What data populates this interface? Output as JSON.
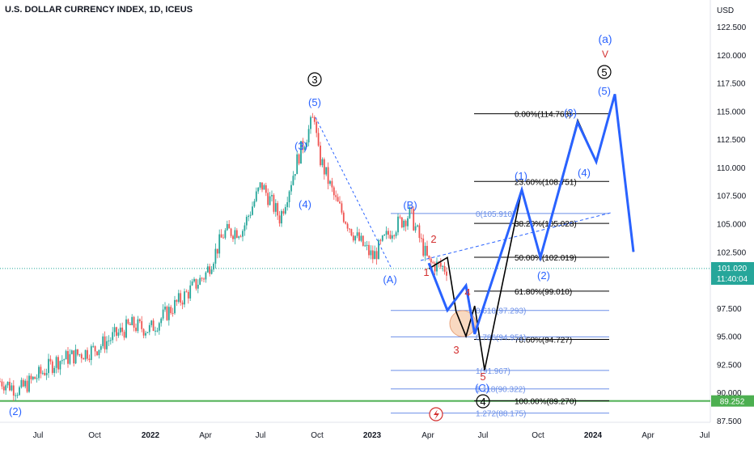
{
  "header": {
    "title": "U.S. DOLLAR CURRENCY INDEX, 1D, ICEUS"
  },
  "axis": {
    "currency": "USD",
    "yticks": [
      "122.500",
      "120.000",
      "117.500",
      "115.000",
      "112.500",
      "110.000",
      "107.500",
      "105.000",
      "102.500",
      "100.000",
      "97.500",
      "95.000",
      "92.500",
      "90.000",
      "87.500"
    ],
    "xticks": [
      "Jul",
      "Oct",
      "2022",
      "Apr",
      "Jul",
      "Oct",
      "2023",
      "Apr",
      "Jul",
      "Oct",
      "2024",
      "Apr",
      "Jul"
    ],
    "price_label": "101.020",
    "countdown_label": "11:40:04",
    "support_label": "89.252"
  },
  "colors": {
    "up": "#26a69a",
    "down": "#ef5350",
    "projection_blue": "#2962ff",
    "projection_black": "#000000",
    "support_green": "#4caf50",
    "label_blue": "#2962ff",
    "label_red": "#d32f2f",
    "fib_blue": "#6b8fe8"
  },
  "fib_black": [
    {
      "label": "0.00%(114.768)",
      "value": 114.768
    },
    {
      "label": "23.60%(108.751)",
      "value": 108.751
    },
    {
      "label": "38.20%(105.028)",
      "value": 105.028
    },
    {
      "label": "50.00%(102.019)",
      "value": 102.019
    },
    {
      "label": "61.80%(99.010)",
      "value": 99.01
    },
    {
      "label": "78.60%(94.727)",
      "value": 94.727
    },
    {
      "label": "100.00%(89.270)",
      "value": 89.27
    }
  ],
  "fib_blue": [
    {
      "label": "0(105.910)",
      "value": 105.91
    },
    {
      "label": "0.618(97.293)",
      "value": 97.293
    },
    {
      "label": "0.786(94.951)",
      "value": 94.951
    },
    {
      "label": "1(91.967)",
      "value": 91.967
    },
    {
      "label": "1.118(90.322)",
      "value": 90.322
    },
    {
      "label": "1.272(88.175)",
      "value": 88.175
    }
  ],
  "wave_labels": {
    "circle3": "3",
    "five_top": "(5)",
    "three_left": "(3)",
    "four_left": "(4)",
    "two_left": "(2)",
    "A": "(A)",
    "B": "(B)",
    "r1": "1",
    "r2": "2",
    "r3": "3",
    "r4": "4",
    "r5": "5",
    "c4": "4",
    "C": "(C)",
    "p1": "(1)",
    "p2": "(2)",
    "p3": "(3)",
    "p4": "(4)",
    "p5": "(5)",
    "c5": "5",
    "a": "(a)",
    "v": "V"
  },
  "chart_data": {
    "type": "candlestick",
    "title": "U.S. DOLLAR CURRENCY INDEX, 1D, ICEUS",
    "ylabel": "USD",
    "ylim": [
      86.8,
      123.8
    ],
    "x_ticks": [
      "Jul",
      "Oct",
      "2022",
      "Apr",
      "Jul",
      "Oct",
      "2023",
      "Apr",
      "Jul",
      "Oct",
      "2024",
      "Apr",
      "Jul"
    ],
    "price_path": [
      {
        "date": "2021-05",
        "value": 91.0
      },
      {
        "date": "2021-06",
        "value": 90.2
      },
      {
        "date": "2021-08",
        "value": 92.8
      },
      {
        "date": "2021-10",
        "value": 93.8
      },
      {
        "date": "2021-12",
        "value": 96.0
      },
      {
        "date": "2022-01",
        "value": 95.6
      },
      {
        "date": "2022-03",
        "value": 98.8
      },
      {
        "date": "2022-04",
        "value": 100.5
      },
      {
        "date": "2022-05",
        "value": 104.2
      },
      {
        "date": "2022-06",
        "value": 104.5
      },
      {
        "date": "2022-07",
        "value": 108.5
      },
      {
        "date": "2022-08",
        "value": 105.5
      },
      {
        "date": "2022-09",
        "value": 111.0
      },
      {
        "date": "2022-09-28",
        "value": 114.8
      },
      {
        "date": "2022-10",
        "value": 111.5
      },
      {
        "date": "2022-11",
        "value": 107.0
      },
      {
        "date": "2022-12",
        "value": 104.0
      },
      {
        "date": "2023-01",
        "value": 102.0
      },
      {
        "date": "2023-02",
        "value": 104.5
      },
      {
        "date": "2023-03",
        "value": 105.9
      },
      {
        "date": "2023-04",
        "value": 101.5
      },
      {
        "date": "2023-05",
        "value": 101.0
      }
    ],
    "projection_blue": [
      {
        "date": "2023-04",
        "value": 101.5
      },
      {
        "date": "2023-05",
        "value": 97.3
      },
      {
        "date": "2023-06",
        "value": 99.5
      },
      {
        "date": "2023-06-15",
        "value": 95.2
      },
      {
        "date": "2023-09",
        "value": 108.0
      },
      {
        "date": "2023-10",
        "value": 102.0
      },
      {
        "date": "2023-12",
        "value": 114.0
      },
      {
        "date": "2024-01",
        "value": 110.5
      },
      {
        "date": "2024-02",
        "value": 116.5
      },
      {
        "date": "2024-03",
        "value": 102.5
      }
    ],
    "projection_black": [
      {
        "date": "2023-04",
        "value": 101.0
      },
      {
        "date": "2023-05",
        "value": 102.0
      },
      {
        "date": "2023-05-15",
        "value": 97.2
      },
      {
        "date": "2023-06",
        "value": 95.0
      },
      {
        "date": "2023-06-15",
        "value": 97.7
      },
      {
        "date": "2023-07",
        "value": 92.0
      },
      {
        "date": "2023-09",
        "value": 108.0
      },
      {
        "date": "2023-10",
        "value": 102.0
      },
      {
        "date": "2023-12",
        "value": 114.2
      },
      {
        "date": "2024-01",
        "value": 110.5
      },
      {
        "date": "2024-02",
        "value": 116.5
      },
      {
        "date": "2024-03",
        "value": 102.5
      }
    ],
    "support_level": 89.252,
    "last_price": 101.02
  }
}
